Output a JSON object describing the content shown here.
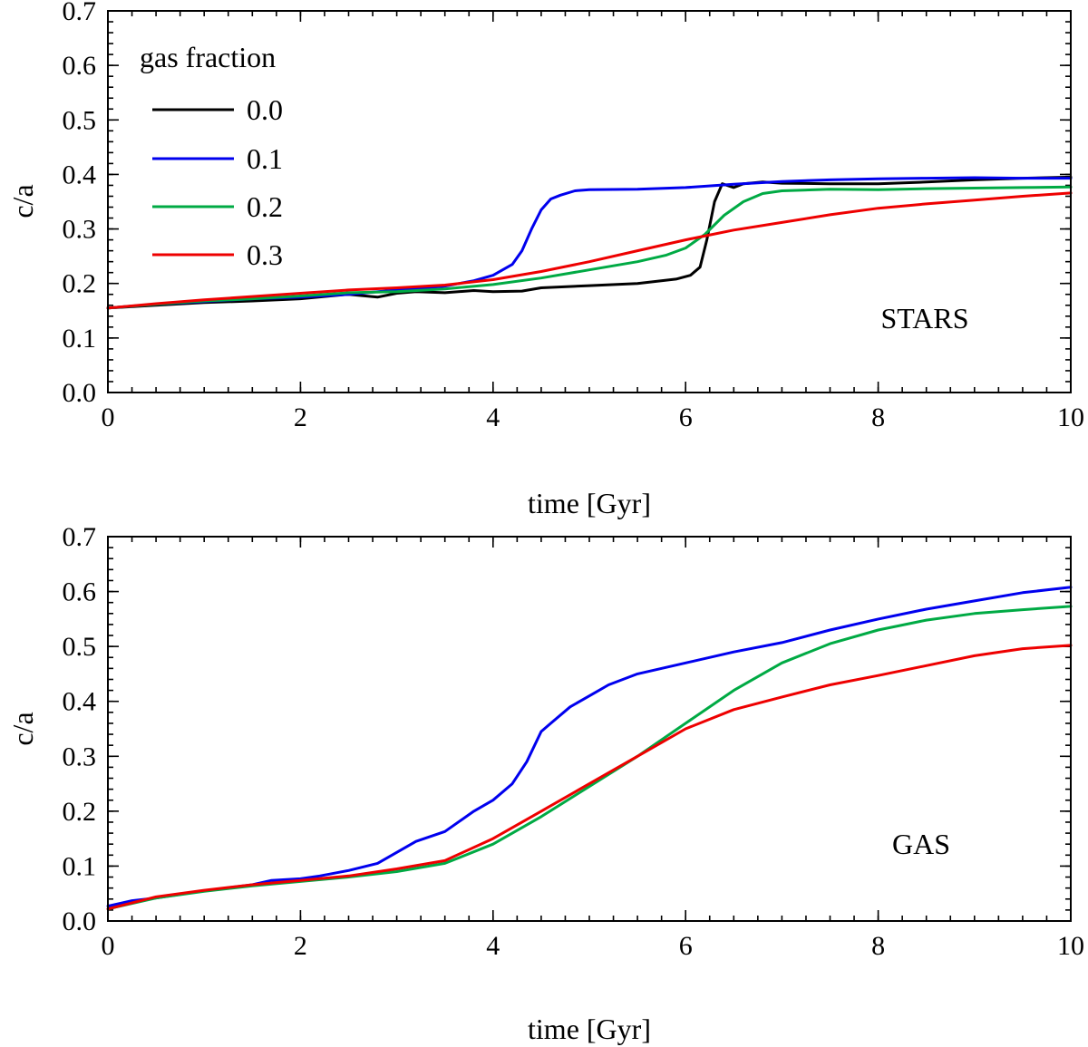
{
  "chart_data": [
    {
      "type": "line",
      "panel_label": "STARS",
      "xlabel": "time [Gyr]",
      "ylabel": "c/a",
      "xlim": [
        0,
        10
      ],
      "ylim": [
        0,
        0.7
      ],
      "xticks": [
        0,
        2,
        4,
        6,
        8,
        10
      ],
      "xtick_labels": [
        "0",
        "2",
        "4",
        "6",
        "8",
        "10"
      ],
      "yticks": [
        0,
        0.1,
        0.2,
        0.3,
        0.4,
        0.5,
        0.6,
        0.7
      ],
      "ytick_labels": [
        "0.0",
        "0.1",
        "0.2",
        "0.3",
        "0.4",
        "0.5",
        "0.6",
        "0.7"
      ],
      "x_minor_step": 0.25,
      "y_minor_step": 0.02,
      "legend": {
        "title": "gas fraction",
        "position": "top-left",
        "entries": [
          "0.0",
          "0.1",
          "0.2",
          "0.3"
        ]
      },
      "series": [
        {
          "name": "0.0",
          "color": "#000000",
          "x": [
            0,
            0.5,
            1.0,
            1.5,
            2.0,
            2.5,
            2.8,
            3.0,
            3.2,
            3.5,
            3.8,
            4.0,
            4.3,
            4.5,
            5.0,
            5.5,
            5.9,
            6.05,
            6.15,
            6.22,
            6.3,
            6.38,
            6.5,
            6.6,
            6.8,
            7.0,
            7.5,
            8.0,
            8.5,
            9.0,
            9.5,
            10.0
          ],
          "y": [
            0.155,
            0.16,
            0.165,
            0.168,
            0.172,
            0.18,
            0.175,
            0.182,
            0.185,
            0.183,
            0.187,
            0.185,
            0.186,
            0.192,
            0.196,
            0.2,
            0.208,
            0.215,
            0.23,
            0.28,
            0.35,
            0.383,
            0.376,
            0.383,
            0.386,
            0.384,
            0.383,
            0.383,
            0.386,
            0.39,
            0.393,
            0.395
          ]
        },
        {
          "name": "0.1",
          "color": "#0000ee",
          "x": [
            0,
            0.5,
            1.0,
            1.5,
            2.0,
            2.5,
            3.0,
            3.5,
            3.8,
            4.0,
            4.2,
            4.3,
            4.4,
            4.5,
            4.6,
            4.7,
            4.85,
            5.0,
            5.5,
            6.0,
            6.5,
            7.0,
            7.5,
            8.0,
            8.5,
            9.0,
            9.5,
            10.0
          ],
          "y": [
            0.155,
            0.162,
            0.167,
            0.172,
            0.175,
            0.18,
            0.188,
            0.195,
            0.205,
            0.215,
            0.235,
            0.26,
            0.3,
            0.335,
            0.355,
            0.362,
            0.37,
            0.372,
            0.373,
            0.376,
            0.382,
            0.387,
            0.39,
            0.392,
            0.393,
            0.394,
            0.393,
            0.393
          ]
        },
        {
          "name": "0.2",
          "color": "#00aa44",
          "x": [
            0,
            0.5,
            1.0,
            1.5,
            2.0,
            2.5,
            3.0,
            3.5,
            4.0,
            4.5,
            5.0,
            5.5,
            5.8,
            6.0,
            6.2,
            6.4,
            6.6,
            6.8,
            7.0,
            7.5,
            8.0,
            8.5,
            9.0,
            9.5,
            10.0
          ],
          "y": [
            0.155,
            0.162,
            0.168,
            0.172,
            0.177,
            0.183,
            0.185,
            0.19,
            0.198,
            0.21,
            0.225,
            0.24,
            0.252,
            0.265,
            0.29,
            0.325,
            0.35,
            0.365,
            0.37,
            0.373,
            0.372,
            0.374,
            0.375,
            0.376,
            0.377
          ]
        },
        {
          "name": "0.3",
          "color": "#ee0000",
          "x": [
            0,
            0.5,
            1.0,
            1.5,
            2.0,
            2.5,
            3.0,
            3.5,
            4.0,
            4.5,
            5.0,
            5.5,
            6.0,
            6.5,
            7.0,
            7.5,
            8.0,
            8.5,
            9.0,
            9.5,
            10.0
          ],
          "y": [
            0.155,
            0.163,
            0.17,
            0.176,
            0.182,
            0.188,
            0.192,
            0.197,
            0.207,
            0.222,
            0.24,
            0.26,
            0.28,
            0.298,
            0.312,
            0.326,
            0.338,
            0.346,
            0.353,
            0.36,
            0.366
          ]
        }
      ]
    },
    {
      "type": "line",
      "panel_label": "GAS",
      "xlabel": "time [Gyr]",
      "ylabel": "c/a",
      "xlim": [
        0,
        10
      ],
      "ylim": [
        0,
        0.7
      ],
      "xticks": [
        0,
        2,
        4,
        6,
        8,
        10
      ],
      "xtick_labels": [
        "0",
        "2",
        "4",
        "6",
        "8",
        "10"
      ],
      "yticks": [
        0,
        0.1,
        0.2,
        0.3,
        0.4,
        0.5,
        0.6,
        0.7
      ],
      "ytick_labels": [
        "0.0",
        "0.1",
        "0.2",
        "0.3",
        "0.4",
        "0.5",
        "0.6",
        "0.7"
      ],
      "x_minor_step": 0.25,
      "y_minor_step": 0.02,
      "series": [
        {
          "name": "0.1",
          "color": "#0000ee",
          "x": [
            0,
            0.25,
            0.5,
            1.0,
            1.5,
            1.7,
            2.0,
            2.2,
            2.5,
            2.8,
            3.0,
            3.2,
            3.5,
            3.8,
            4.0,
            4.2,
            4.35,
            4.5,
            4.6,
            4.8,
            5.0,
            5.2,
            5.5,
            6.0,
            6.5,
            7.0,
            7.5,
            8.0,
            8.5,
            9.0,
            9.5,
            10.0
          ],
          "y": [
            0.027,
            0.037,
            0.042,
            0.055,
            0.066,
            0.074,
            0.077,
            0.082,
            0.092,
            0.105,
            0.125,
            0.145,
            0.163,
            0.2,
            0.22,
            0.25,
            0.29,
            0.345,
            0.36,
            0.39,
            0.41,
            0.43,
            0.45,
            0.47,
            0.49,
            0.507,
            0.53,
            0.55,
            0.568,
            0.583,
            0.598,
            0.608
          ]
        },
        {
          "name": "0.2",
          "color": "#00aa44",
          "x": [
            0,
            0.5,
            1.0,
            1.5,
            2.0,
            2.5,
            3.0,
            3.5,
            4.0,
            4.5,
            5.0,
            5.5,
            6.0,
            6.5,
            7.0,
            7.5,
            8.0,
            8.5,
            9.0,
            9.5,
            10.0
          ],
          "y": [
            0.022,
            0.042,
            0.054,
            0.064,
            0.072,
            0.08,
            0.09,
            0.105,
            0.14,
            0.19,
            0.245,
            0.3,
            0.36,
            0.42,
            0.47,
            0.505,
            0.53,
            0.548,
            0.56,
            0.567,
            0.573
          ]
        },
        {
          "name": "0.3",
          "color": "#ee0000",
          "x": [
            0,
            0.5,
            1.0,
            1.5,
            2.0,
            2.5,
            3.0,
            3.5,
            4.0,
            4.5,
            5.0,
            5.5,
            6.0,
            6.5,
            7.0,
            7.5,
            8.0,
            8.5,
            9.0,
            9.5,
            10.0
          ],
          "y": [
            0.022,
            0.044,
            0.056,
            0.066,
            0.074,
            0.082,
            0.095,
            0.11,
            0.15,
            0.2,
            0.25,
            0.3,
            0.35,
            0.385,
            0.408,
            0.43,
            0.447,
            0.465,
            0.483,
            0.496,
            0.502
          ]
        }
      ]
    }
  ]
}
